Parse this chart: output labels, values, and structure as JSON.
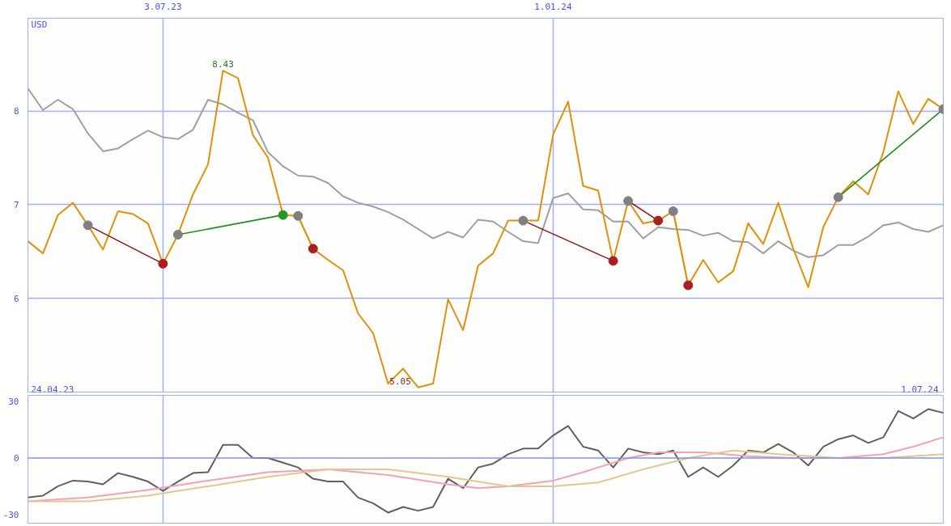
{
  "chart_data": [
    {
      "type": "line",
      "x": [
        "2023-05-01",
        "2023-05-08",
        "2023-05-15",
        "2023-05-22",
        "2023-05-29",
        "2023-06-05",
        "2023-06-12",
        "2023-06-19",
        "2023-06-26",
        "2023-07-03",
        "2023-07-10",
        "2023-07-17",
        "2023-07-24",
        "2023-07-31",
        "2023-08-07",
        "2023-08-14",
        "2023-08-21",
        "2023-08-28",
        "2023-09-04",
        "2023-09-11",
        "2023-09-18",
        "2023-09-25",
        "2023-10-02",
        "2023-10-09",
        "2023-10-16",
        "2023-10-23",
        "2023-10-30",
        "2023-11-06",
        "2023-11-13",
        "2023-11-20",
        "2023-11-27",
        "2023-12-04",
        "2023-12-11",
        "2023-12-18",
        "2023-12-25",
        "2024-01-01",
        "2024-01-08",
        "2024-01-15",
        "2024-01-22",
        "2024-01-29",
        "2024-02-05",
        "2024-02-12",
        "2024-02-19",
        "2024-02-26",
        "2024-03-04",
        "2024-03-11",
        "2024-03-18",
        "2024-03-25",
        "2024-04-01",
        "2024-04-08",
        "2024-04-15",
        "2024-04-22",
        "2024-04-29",
        "2024-05-06",
        "2024-05-13",
        "2024-05-20",
        "2024-05-27",
        "2024-06-03",
        "2024-06-10",
        "2024-06-17",
        "2024-06-24",
        "2024-07-01"
      ],
      "series": [
        {
          "color": "#a0a0a0",
          "values": [
            8.24,
            8.01,
            8.12,
            8.02,
            7.76,
            7.57,
            7.6,
            7.7,
            7.79,
            7.72,
            7.7,
            7.8,
            8.12,
            8.07,
            7.98,
            7.9,
            7.56,
            7.41,
            7.31,
            7.3,
            7.23,
            7.09,
            7.02,
            6.98,
            6.92,
            6.84,
            6.74,
            6.64,
            6.71,
            6.65,
            6.84,
            6.82,
            6.71,
            6.61,
            6.59,
            7.07,
            7.12,
            6.95,
            6.94,
            6.82,
            6.82,
            6.64,
            6.76,
            6.74,
            6.73,
            6.67,
            6.7,
            6.61,
            6.6,
            6.48,
            6.61,
            6.51,
            6.44,
            6.46,
            6.57,
            6.57,
            6.66,
            6.78,
            6.81,
            6.74,
            6.71,
            6.78
          ]
        },
        {
          "color": "#e0900a",
          "values": [
            6.61,
            6.48,
            6.89,
            7.02,
            6.78,
            6.52,
            6.93,
            6.9,
            6.8,
            6.37,
            6.68,
            7.11,
            7.43,
            8.43,
            8.35,
            7.74,
            7.5,
            6.89,
            6.88,
            6.53,
            6.41,
            6.3,
            5.84,
            5.63,
            5.09,
            5.25,
            5.05,
            5.09,
            5.99,
            5.66,
            6.35,
            6.48,
            6.83,
            6.83,
            6.83,
            7.75,
            8.1,
            7.2,
            7.15,
            6.4,
            7.04,
            6.8,
            6.83,
            6.93,
            6.14,
            6.41,
            6.17,
            6.29,
            6.8,
            6.58,
            7.02,
            6.53,
            6.12,
            6.76,
            7.08,
            7.25,
            7.11,
            7.56,
            8.21,
            7.86,
            8.13,
            8.02
          ]
        },
        {
          "color": "#8b1a1a",
          "marker": "circle",
          "x": [
            "2023-05-29",
            "2023-07-03"
          ],
          "values": [
            6.78,
            6.37
          ],
          "colors": [
            "#808080",
            "#aa2020"
          ]
        },
        {
          "color": "#228b22",
          "marker": "circle",
          "x": [
            "2023-07-10",
            "2023-08-28"
          ],
          "values": [
            6.68,
            6.89
          ],
          "colors": [
            "#808080",
            "#229922"
          ]
        },
        {
          "color": "#e0900a",
          "marker": "circle",
          "x": [
            "2023-09-04",
            "2023-09-11"
          ],
          "values": [
            6.88,
            6.53
          ],
          "colors": [
            "#808080",
            "#aa2020"
          ]
        },
        {
          "color": "#8b1a1a",
          "marker": "circle",
          "x": [
            "2023-12-18",
            "2024-01-29"
          ],
          "values": [
            6.83,
            6.4
          ],
          "colors": [
            "#808080",
            "#aa2020"
          ]
        },
        {
          "color": "#8b1a1a",
          "marker": "circle",
          "x": [
            "2024-02-05",
            "2024-02-19"
          ],
          "values": [
            7.04,
            6.83
          ],
          "colors": [
            "#808080",
            "#aa2020"
          ]
        },
        {
          "color": "#e0900a",
          "marker": "circle",
          "x": [
            "2024-02-26",
            "2024-03-04"
          ],
          "values": [
            6.93,
            6.14
          ],
          "colors": [
            "#808080",
            "#aa2020"
          ]
        },
        {
          "color": "#228b22",
          "marker": "circle",
          "x": [
            "2024-05-13",
            "2024-07-01"
          ],
          "values": [
            7.08,
            8.02
          ],
          "colors": [
            "#808080",
            "#808080"
          ]
        }
      ],
      "xlim": [
        "2023-05-01",
        "2024-07-01"
      ],
      "xticks": [
        {
          "value": "2023-07-03",
          "label": "3.07.23"
        },
        {
          "value": "2024-01-01",
          "label": "1.01.24"
        }
      ],
      "ylim": [
        5,
        8.99
      ],
      "yticks": [
        6,
        7,
        8
      ],
      "grid": true,
      "annotations": [
        "USD",
        "24.04.23",
        "1.07.24",
        {
          "text": "8.43",
          "x": "2023-07-31",
          "y": 8.43
        },
        {
          "text": "5.05",
          "x": "2023-10-30",
          "y": 5.05
        }
      ]
    },
    {
      "type": "line",
      "series": [
        {
          "color": "#606060",
          "values": [
            -21,
            -20,
            -15,
            -12,
            -12.5,
            -14,
            -8,
            -10,
            -12.5,
            -17.5,
            -12.5,
            -8,
            -7.5,
            7,
            7,
            0,
            0,
            -2.5,
            -5,
            -11,
            -12.5,
            -12.5,
            -21,
            -24,
            -29,
            -26,
            -28,
            -26,
            -11,
            -16,
            -5,
            -3,
            2,
            5,
            5,
            12,
            17,
            6,
            4,
            -5,
            5,
            3,
            2,
            4,
            -10,
            -5,
            -10,
            -4,
            4,
            3,
            7.5,
            3,
            -4,
            6,
            10,
            12,
            8,
            11,
            25,
            21,
            26,
            24
          ]
        },
        {
          "color": "#f4a0b8",
          "x": [
            "2023-05-01",
            "2023-05-29",
            "2023-06-26",
            "2023-07-24",
            "2023-08-21",
            "2023-09-18",
            "2023-10-16",
            "2023-11-13",
            "2023-11-27",
            "2023-12-11",
            "2024-01-01",
            "2024-01-15",
            "2024-02-05",
            "2024-02-19",
            "2024-03-11",
            "2024-04-01",
            "2024-04-22",
            "2024-05-13",
            "2024-06-03",
            "2024-06-17",
            "2024-07-01"
          ],
          "values": [
            -23,
            -21,
            -17,
            -12,
            -7.5,
            -6,
            -9,
            -14,
            -16,
            -15,
            -12,
            -7.5,
            0,
            3,
            3,
            1,
            0,
            0,
            2,
            6,
            11
          ]
        },
        {
          "color": "#e0c890",
          "x": [
            "2023-05-01",
            "2023-05-29",
            "2023-06-26",
            "2023-07-24",
            "2023-08-21",
            "2023-09-18",
            "2023-10-16",
            "2023-11-13",
            "2023-12-11",
            "2024-01-01",
            "2024-01-22",
            "2024-02-12",
            "2024-03-04",
            "2024-03-25",
            "2024-04-15",
            "2024-05-13",
            "2024-06-03",
            "2024-07-01"
          ],
          "values": [
            -23,
            -23,
            -20,
            -15,
            -10,
            -6,
            -6,
            -10,
            -15,
            -15,
            -13,
            -6,
            0,
            4,
            2,
            0,
            0,
            2
          ]
        }
      ],
      "x": [
        "2023-05-01",
        "2023-05-08",
        "2023-05-15",
        "2023-05-22",
        "2023-05-29",
        "2023-06-05",
        "2023-06-12",
        "2023-06-19",
        "2023-06-26",
        "2023-07-03",
        "2023-07-10",
        "2023-07-17",
        "2023-07-24",
        "2023-07-31",
        "2023-08-07",
        "2023-08-14",
        "2023-08-21",
        "2023-08-28",
        "2023-09-04",
        "2023-09-11",
        "2023-09-18",
        "2023-09-25",
        "2023-10-02",
        "2023-10-09",
        "2023-10-16",
        "2023-10-23",
        "2023-10-30",
        "2023-11-06",
        "2023-11-13",
        "2023-11-20",
        "2023-11-27",
        "2023-12-04",
        "2023-12-11",
        "2023-12-18",
        "2023-12-25",
        "2024-01-01",
        "2024-01-08",
        "2024-01-15",
        "2024-01-22",
        "2024-01-29",
        "2024-02-05",
        "2024-02-12",
        "2024-02-19",
        "2024-02-26",
        "2024-03-04",
        "2024-03-11",
        "2024-03-18",
        "2024-03-25",
        "2024-04-01",
        "2024-04-08",
        "2024-04-15",
        "2024-04-22",
        "2024-04-29",
        "2024-05-06",
        "2024-05-13",
        "2024-05-20",
        "2024-05-27",
        "2024-06-03",
        "2024-06-10",
        "2024-06-17",
        "2024-06-24",
        "2024-07-01"
      ],
      "xlim": [
        "2023-05-01",
        "2024-07-01"
      ],
      "xticks": [
        {
          "value": "2023-07-03",
          "label": null
        },
        {
          "value": "2024-01-01",
          "label": null
        }
      ],
      "ylim": [
        -34.6,
        33.3
      ],
      "yticks": [
        30,
        0,
        -30
      ],
      "grid": "x",
      "tick_labels": "y",
      "ref_lines": [
        {
          "axis": "y",
          "value": 0,
          "color": "#8090f0"
        }
      ]
    }
  ]
}
